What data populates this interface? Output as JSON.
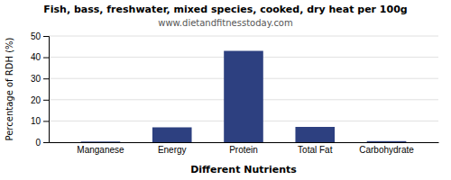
{
  "chart_data": {
    "type": "bar",
    "title": "Fish, bass, freshwater, mixed species, cooked, dry heat per 100g",
    "subtitle": "www.dietandfitnesstoday.com",
    "xlabel": "Different Nutrients",
    "ylabel": "Percentage of RDH (%)",
    "categories": [
      "Manganese",
      "Energy",
      "Protein",
      "Total Fat",
      "Carbohydrate"
    ],
    "values": [
      0.3,
      7.0,
      43.0,
      7.2,
      0.5
    ],
    "color": "#2d4080",
    "ylim": [
      0,
      50
    ],
    "yticks": [
      0,
      10,
      20,
      30,
      40,
      50
    ],
    "grid": true
  }
}
